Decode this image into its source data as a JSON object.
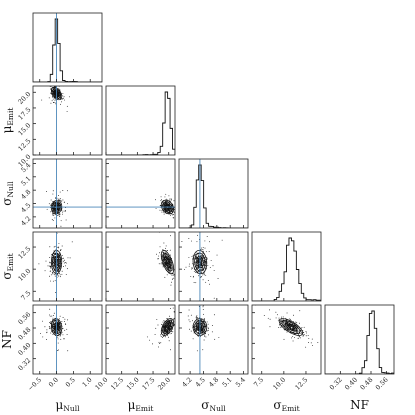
{
  "chart_data": {
    "type": "corner",
    "params": [
      {
        "key": "mu_null",
        "label": "μ",
        "sub": "Null",
        "range": [
          -0.7,
          1.35
        ],
        "ticks": [
          -0.5,
          0.0,
          0.5,
          1.0
        ],
        "tick_labels": [
          "−0.5",
          "0.0",
          "0.5",
          "1.0"
        ],
        "center": 0.0,
        "sd": 0.07,
        "truth": 0.0
      },
      {
        "key": "mu_emit",
        "label": "μ",
        "sub": "Emit",
        "range": [
          10.0,
          21.0
        ],
        "ticks": [
          10.0,
          12.5,
          15.0,
          17.5,
          20.0
        ],
        "tick_labels": [
          "10.0",
          "12.5",
          "15.0",
          "17.5",
          "20.0"
        ],
        "center": 19.8,
        "sd": 0.45,
        "truth": null
      },
      {
        "key": "sig_null",
        "label": "σ",
        "sub": "Null",
        "range": [
          3.95,
          5.5
        ],
        "ticks": [
          4.2,
          4.5,
          4.8,
          5.1,
          5.4
        ],
        "tick_labels": [
          "4.2",
          "4.5",
          "4.8",
          "5.1",
          "5.4"
        ],
        "center": 4.42,
        "sd": 0.07,
        "truth": 4.42
      },
      {
        "key": "sig_emit",
        "label": "σ",
        "sub": "Emit",
        "range": [
          6.4,
          14.2
        ],
        "ticks": [
          7.5,
          10.0,
          12.5
        ],
        "tick_labels": [
          "7.5",
          "10.0",
          "12.5"
        ],
        "center": 10.8,
        "sd": 0.6,
        "truth": null
      },
      {
        "key": "nf",
        "label": "NF",
        "sub": "",
        "range": [
          0.24,
          0.6
        ],
        "ticks": [
          0.32,
          0.4,
          0.48,
          0.56
        ],
        "tick_labels": [
          "0.32",
          "0.40",
          "0.48",
          "0.56"
        ],
        "center": 0.485,
        "sd": 0.02,
        "truth": null
      }
    ],
    "correlations": {
      "0-1": -0.45,
      "0-2": 0.1,
      "0-3": 0.0,
      "0-4": -0.1,
      "1-2": -0.3,
      "1-3": -0.6,
      "1-4": 0.5,
      "2-3": -0.1,
      "2-4": 0.0,
      "3-4": -0.7
    },
    "truth_color": "#4a86b8",
    "grid": false,
    "legend": "none"
  }
}
